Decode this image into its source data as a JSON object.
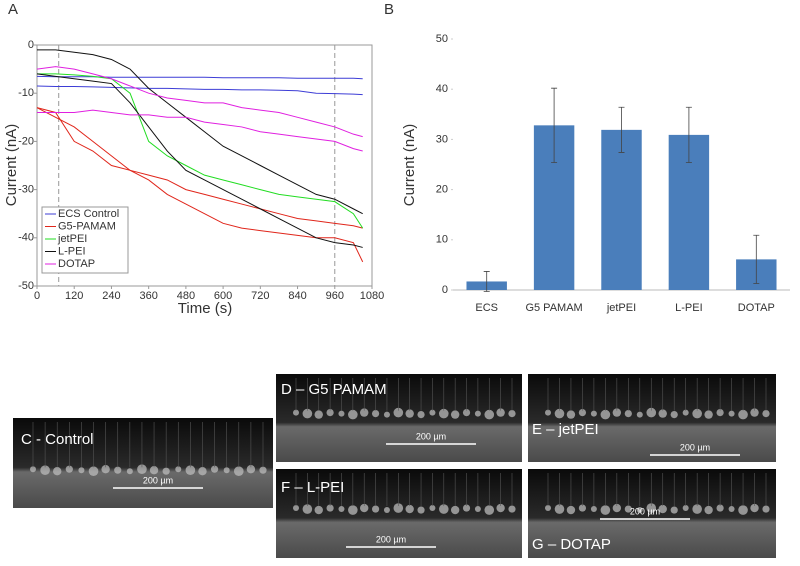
{
  "chart_data": [
    {
      "type": "line",
      "panel": "A",
      "xlabel": "Time (s)",
      "ylabel": "Current (nA)",
      "x": [
        0,
        60,
        120,
        180,
        240,
        300,
        360,
        420,
        480,
        540,
        600,
        660,
        720,
        780,
        840,
        900,
        960,
        1020,
        1050
      ],
      "xlim": [
        0,
        1080
      ],
      "xticks": [
        0,
        120,
        240,
        360,
        480,
        600,
        720,
        840,
        960,
        1080
      ],
      "ylim": [
        -50,
        0
      ],
      "yticks": [
        -50,
        -40,
        -30,
        -20,
        -10,
        0
      ],
      "vlines": [
        70,
        960
      ],
      "series": [
        {
          "name": "ECS Control",
          "color": "#3d3dd6",
          "lines": [
            [
              -6.5,
              -6.6,
              -6.6,
              -6.6,
              -6.7,
              -6.7,
              -6.7,
              -6.7,
              -6.7,
              -6.7,
              -6.8,
              -6.8,
              -6.8,
              -6.8,
              -6.9,
              -6.9,
              -6.9,
              -6.9,
              -7
            ],
            [
              -8.5,
              -8.6,
              -8.6,
              -8.7,
              -8.8,
              -8.9,
              -9,
              -9,
              -9.1,
              -9.2,
              -9.2,
              -9.3,
              -9.3,
              -9.4,
              -9.5,
              -10,
              -10.1,
              -10.2,
              -10.3
            ]
          ]
        },
        {
          "name": "G5-PAMAM",
          "color": "#e0261b",
          "lines": [
            [
              -13,
              -14,
              -20,
              -22,
              -25,
              -26,
              -27,
              -28,
              -30,
              -31,
              -32,
              -33,
              -34,
              -35,
              -36,
              -36.5,
              -37,
              -37.5,
              -38
            ],
            [
              -13,
              -15,
              -17,
              -20,
              -23,
              -26,
              -28,
              -31,
              -33,
              -35,
              -37,
              -38,
              -38.5,
              -39,
              -39.5,
              -40,
              -40,
              -41,
              -45
            ]
          ]
        },
        {
          "name": "jetPEI",
          "color": "#22dd22",
          "lines": [
            [
              -6,
              -6,
              -6.2,
              -6.5,
              -7,
              -10,
              -20,
              -23,
              -25,
              -27,
              -28,
              -29,
              -30,
              -31,
              -31.5,
              -32,
              -32.5,
              -35,
              -38
            ]
          ],
          "_": null
        },
        {
          "name": "L-PEI",
          "color": "#111111",
          "lines": [
            [
              -1,
              -1,
              -1.5,
              -2,
              -3,
              -5,
              -9,
              -12,
              -15,
              -18,
              -21,
              -23,
              -25,
              -27,
              -29,
              -31,
              -32,
              -34,
              -35
            ],
            [
              -6,
              -6.5,
              -7,
              -7.5,
              -8,
              -12,
              -17,
              -22,
              -26,
              -28,
              -30,
              -32,
              -34,
              -36,
              -38,
              -40,
              -41,
              -41.5,
              -42
            ]
          ]
        },
        {
          "name": "DOTAP",
          "color": "#e020e0",
          "lines": [
            [
              -5,
              -4.5,
              -5,
              -6,
              -7,
              -8.5,
              -10,
              -11,
              -11.5,
              -12,
              -12,
              -13,
              -13.5,
              -14,
              -15,
              -16,
              -17,
              -18.5,
              -19
            ],
            [
              -14,
              -14,
              -14,
              -13.5,
              -14,
              -14.5,
              -14.5,
              -15,
              -15,
              -16,
              -16.5,
              -17,
              -18,
              -18.5,
              -19,
              -19.5,
              -20,
              -21.5,
              -22
            ]
          ]
        }
      ]
    },
    {
      "type": "bar",
      "panel": "B",
      "ylabel": "Current (nA)",
      "color": "#4a7ebb",
      "categories": [
        "ECS",
        "G5 PAMAM",
        "jetPEI",
        "L-PEI",
        "DOTAP"
      ],
      "values": [
        1.7,
        32.8,
        31.9,
        30.9,
        6.1
      ],
      "errors": [
        2,
        7.4,
        4.5,
        5.5,
        4.8
      ],
      "ylim": [
        0,
        50
      ],
      "yticks": [
        0,
        10,
        20,
        30,
        40,
        50
      ]
    }
  ],
  "panels": [
    {
      "label": "C - Control",
      "scale_bar": "200 µm"
    },
    {
      "label": "D – G5 PAMAM",
      "scale_bar": "200 µm"
    },
    {
      "label": "E – jetPEI",
      "scale_bar": "200 µm"
    },
    {
      "label": "F – L-PEI",
      "scale_bar": "200 µm"
    },
    {
      "label": "G – DOTAP",
      "scale_bar": "200 µm"
    }
  ]
}
